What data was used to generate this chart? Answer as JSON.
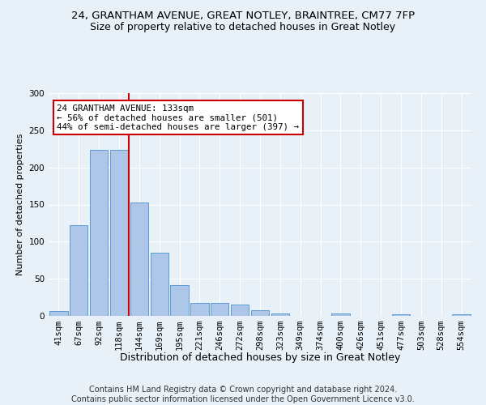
{
  "title": "24, GRANTHAM AVENUE, GREAT NOTLEY, BRAINTREE, CM77 7FP",
  "subtitle": "Size of property relative to detached houses in Great Notley",
  "xlabel": "Distribution of detached houses by size in Great Notley",
  "ylabel": "Number of detached properties",
  "categories": [
    "41sqm",
    "67sqm",
    "92sqm",
    "118sqm",
    "144sqm",
    "169sqm",
    "195sqm",
    "221sqm",
    "246sqm",
    "272sqm",
    "298sqm",
    "323sqm",
    "349sqm",
    "374sqm",
    "400sqm",
    "426sqm",
    "451sqm",
    "477sqm",
    "503sqm",
    "528sqm",
    "554sqm"
  ],
  "values": [
    7,
    122,
    224,
    224,
    153,
    85,
    41,
    17,
    17,
    15,
    8,
    3,
    0,
    0,
    3,
    0,
    0,
    2,
    0,
    0,
    2
  ],
  "bar_color": "#aec6e8",
  "bar_edge_color": "#5b9bd5",
  "background_color": "#e8f0f8",
  "grid_color": "#ffffff",
  "vline_x_index": 3,
  "vline_color": "#cc0000",
  "annotation_text": "24 GRANTHAM AVENUE: 133sqm\n← 56% of detached houses are smaller (501)\n44% of semi-detached houses are larger (397) →",
  "annotation_box_color": "#ffffff",
  "annotation_box_edge_color": "#cc0000",
  "ylim": [
    0,
    300
  ],
  "yticks": [
    0,
    50,
    100,
    150,
    200,
    250,
    300
  ],
  "footnote": "Contains HM Land Registry data © Crown copyright and database right 2024.\nContains public sector information licensed under the Open Government Licence v3.0.",
  "title_fontsize": 9.5,
  "subtitle_fontsize": 9,
  "xlabel_fontsize": 9,
  "ylabel_fontsize": 8,
  "tick_fontsize": 7.5,
  "annotation_fontsize": 7.8,
  "footnote_fontsize": 7
}
